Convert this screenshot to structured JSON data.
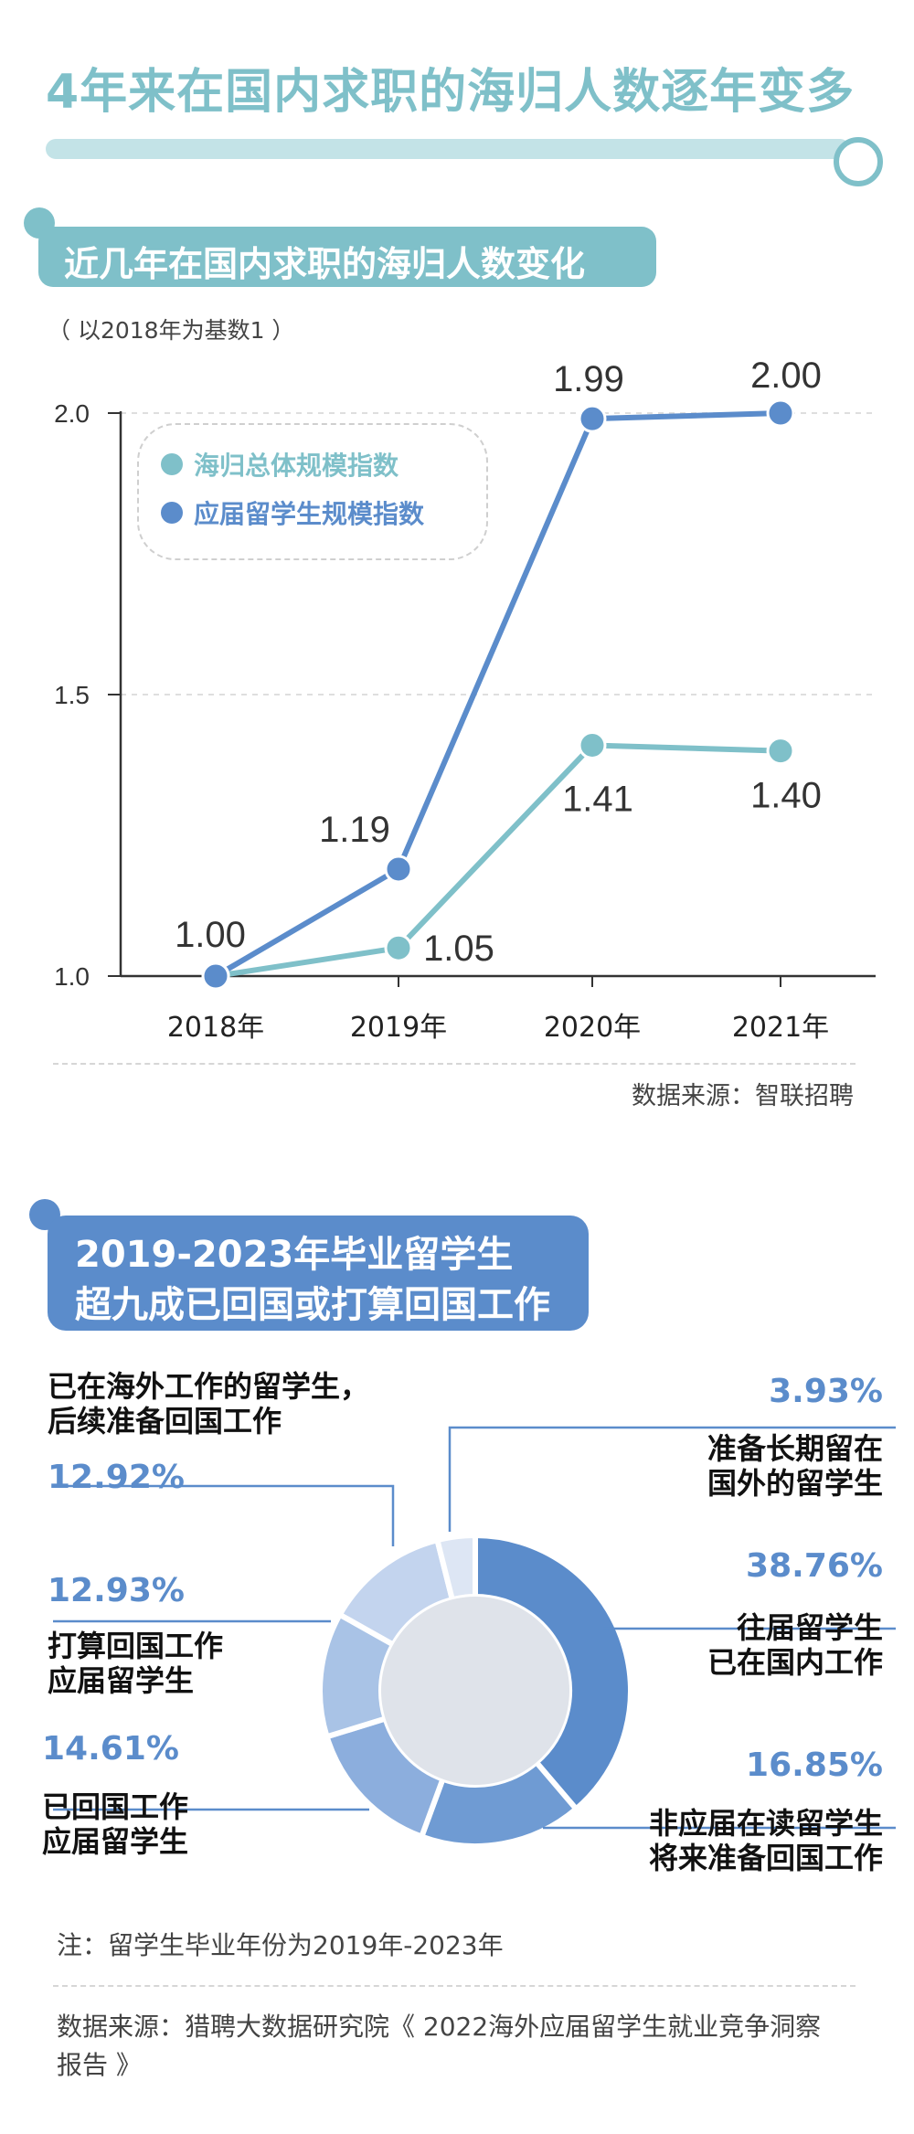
{
  "title": "4年来在国内求职的海归人数逐年变多",
  "section1": {
    "title": "近几年在国内求职的海归人数变化",
    "note": "（ 以2018年为基数1 ）",
    "source": "数据来源：智联招聘"
  },
  "section2": {
    "title_line1": "2019-2023年毕业留学生",
    "title_line2": "超九成已回国或打算回国工作",
    "note": "注：留学生毕业年份为2019年-2023年",
    "source_line1": "数据来源：猎聘大数据研究院《 2022海外应届留学生就业竞争洞察",
    "source_line2": "报告 》"
  },
  "colors": {
    "teal": "#7fc0c9",
    "blue": "#5b8ccb",
    "donut": [
      "#5b8ccb",
      "#6f9bd3",
      "#8caedd",
      "#a9c3e6",
      "#c3d4ee",
      "#dde6f4"
    ]
  },
  "chart_data": [
    {
      "type": "line",
      "categories": [
        "2018年",
        "2019年",
        "2020年",
        "2021年"
      ],
      "series": [
        {
          "name": "海归总体规模指数",
          "values": [
            1.0,
            1.05,
            1.41,
            1.4
          ],
          "color": "#7fc0c9",
          "labels": [
            "",
            "1.05",
            "1.41",
            "1.40"
          ]
        },
        {
          "name": "应届留学生规模指数",
          "values": [
            1.0,
            1.19,
            1.99,
            2.0
          ],
          "color": "#5b8ccb",
          "labels": [
            "1.00",
            "1.19",
            "1.99",
            "2.00"
          ]
        }
      ],
      "ylim": [
        1.0,
        2.0
      ],
      "yticks": [
        "1.0",
        "1.5",
        "2.0"
      ],
      "grid": true,
      "legend": "top-left"
    },
    {
      "type": "pie",
      "donut": true,
      "slices": [
        {
          "label_line1": "往届留学生",
          "label_line2": "已在国内工作",
          "percent": "38.76%",
          "value": 38.76
        },
        {
          "label_line1": "非应届在读留学生",
          "label_line2": "将来准备回国工作",
          "percent": "16.85%",
          "value": 16.85
        },
        {
          "label_line1": "已回国工作",
          "label_line2": "应届留学生",
          "percent": "14.61%",
          "value": 14.61
        },
        {
          "label_line1": "打算回国工作",
          "label_line2": "应届留学生",
          "percent": "12.93%",
          "value": 12.93
        },
        {
          "label_line1": "已在海外工作的留学生，",
          "label_line2": "后续准备回国工作",
          "percent": "12.92%",
          "value": 12.92
        },
        {
          "label_line1": "准备长期留在",
          "label_line2": "国外的留学生",
          "percent": "3.93%",
          "value": 3.93
        }
      ]
    }
  ]
}
